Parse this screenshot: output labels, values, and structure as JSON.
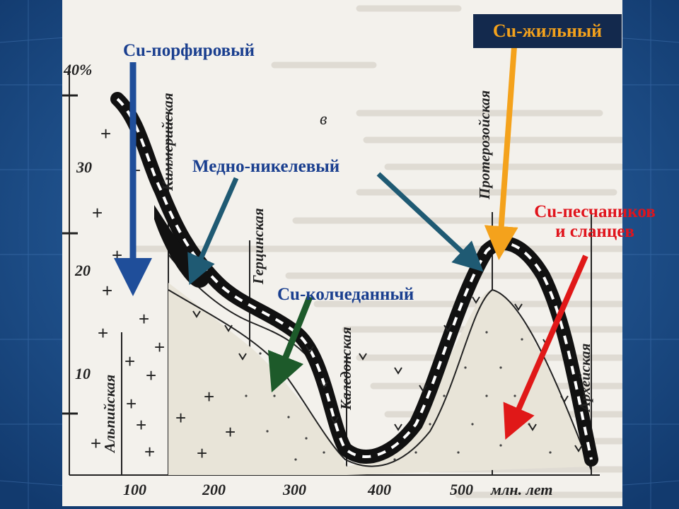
{
  "labels": {
    "cu_porphyry": "Cu-порфировый",
    "cu_nickel": "Медно-никелевый",
    "cu_pyrite": "Cu-колчеданный",
    "cu_vein": "Cu-жильный",
    "cu_sandstone_line1": "Cu-песчаников",
    "cu_sandstone_line2": "и сланцев"
  },
  "chart": {
    "y_ticks": [
      "40%",
      "30",
      "20",
      "10"
    ],
    "x_ticks": [
      "100",
      "200",
      "300",
      "400",
      "500",
      "млн. лет"
    ],
    "curve_letter": "в",
    "orogenies": [
      "Альпийская",
      "Киммерийская",
      "Герцинская",
      "Каледонская",
      "Протерозойская",
      "Архейская"
    ]
  },
  "colors": {
    "blue_arrow": "#1f4e9a",
    "teal_arrow": "#1f5a73",
    "green_arrow": "#1d5a2a",
    "orange_arrow": "#f4a21c",
    "red_arrow": "#e01818",
    "label_blue": "#1a3f8f",
    "label_red": "#e0141c"
  }
}
